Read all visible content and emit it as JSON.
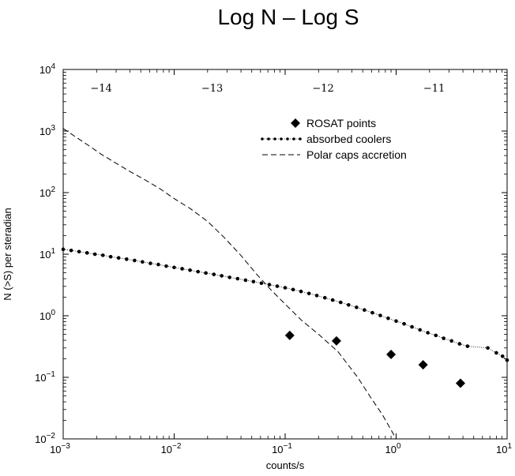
{
  "chart_data": {
    "type": "line",
    "title": "Log N – Log S",
    "xlabel": "counts/s",
    "ylabel": "N (>S)  per steradian",
    "x_scale": "log",
    "y_scale": "log",
    "xlim": [
      0.001,
      10
    ],
    "ylim": [
      0.01,
      10000
    ],
    "x_ticks": [
      {
        "value": 0.001,
        "base": "10",
        "exp": "−3"
      },
      {
        "value": 0.01,
        "base": "10",
        "exp": "−2"
      },
      {
        "value": 0.1,
        "base": "10",
        "exp": "−1"
      },
      {
        "value": 1,
        "base": "10",
        "exp": "0"
      },
      {
        "value": 10,
        "base": "10",
        "exp": "1"
      }
    ],
    "y_ticks": [
      {
        "value": 0.01,
        "base": "10",
        "exp": "−2"
      },
      {
        "value": 0.1,
        "base": "10",
        "exp": "−1"
      },
      {
        "value": 1,
        "base": "10",
        "exp": "0"
      },
      {
        "value": 10,
        "base": "10",
        "exp": "1"
      },
      {
        "value": 100,
        "base": "10",
        "exp": "2"
      },
      {
        "value": 1000,
        "base": "10",
        "exp": "3"
      },
      {
        "value": 10000,
        "base": "10",
        "exp": "4"
      }
    ],
    "top_axis_ticks": [
      {
        "value": 0.0022,
        "label": "−14"
      },
      {
        "value": 0.022,
        "label": "−13"
      },
      {
        "value": 0.22,
        "label": "−12"
      },
      {
        "value": 2.2,
        "label": "−11"
      }
    ],
    "legend_position": "top-right",
    "series": [
      {
        "name": "ROSAT points",
        "style": "diamond-markers",
        "x": [
          0.11,
          0.29,
          0.9,
          1.75,
          3.8
        ],
        "y": [
          0.48,
          0.39,
          0.235,
          0.16,
          0.08
        ]
      },
      {
        "name": "absorbed coolers",
        "style": "dotted-line-with-dots",
        "x": [
          0.001,
          0.00118,
          0.00139,
          0.00164,
          0.00193,
          0.00228,
          0.00268,
          0.00316,
          0.00373,
          0.0044,
          0.00518,
          0.00611,
          0.0072,
          0.00848,
          0.01,
          0.0118,
          0.0139,
          0.0164,
          0.0193,
          0.0228,
          0.0268,
          0.0316,
          0.0373,
          0.044,
          0.0518,
          0.0611,
          0.072,
          0.0848,
          0.1,
          0.118,
          0.139,
          0.164,
          0.193,
          0.228,
          0.268,
          0.316,
          0.373,
          0.44,
          0.518,
          0.611,
          0.72,
          0.848,
          1,
          1.18,
          1.39,
          1.64,
          1.93,
          2.28,
          2.68,
          3.16,
          3.73,
          4.4,
          6.7,
          8.0,
          9.1,
          10
        ],
        "y": [
          12,
          11.5,
          11.0,
          10.5,
          10.0,
          9.6,
          9.1,
          8.7,
          8.3,
          7.9,
          7.5,
          7.1,
          6.8,
          6.4,
          6.1,
          5.8,
          5.5,
          5.2,
          4.95,
          4.7,
          4.45,
          4.2,
          4.0,
          3.78,
          3.58,
          3.38,
          3.2,
          3.02,
          2.85,
          2.66,
          2.48,
          2.3,
          2.13,
          1.96,
          1.8,
          1.65,
          1.5,
          1.37,
          1.24,
          1.12,
          1.01,
          0.91,
          0.82,
          0.74,
          0.66,
          0.59,
          0.53,
          0.48,
          0.43,
          0.39,
          0.35,
          0.32,
          0.3,
          0.25,
          0.22,
          0.19
        ]
      },
      {
        "name": "Polar caps accretion",
        "style": "dashed-line",
        "x": [
          0.001,
          0.0013,
          0.0017,
          0.0022,
          0.003,
          0.004,
          0.0055,
          0.0075,
          0.01,
          0.014,
          0.02,
          0.028,
          0.04,
          0.055,
          0.075,
          0.1,
          0.14,
          0.2,
          0.3,
          0.45,
          0.6,
          0.75,
          0.9,
          1.0
        ],
        "y": [
          1100,
          800,
          580,
          420,
          300,
          220,
          160,
          115,
          80,
          55,
          34,
          19,
          9.5,
          4.8,
          2.6,
          1.55,
          0.85,
          0.5,
          0.26,
          0.1,
          0.045,
          0.025,
          0.014,
          0.01
        ]
      }
    ]
  }
}
